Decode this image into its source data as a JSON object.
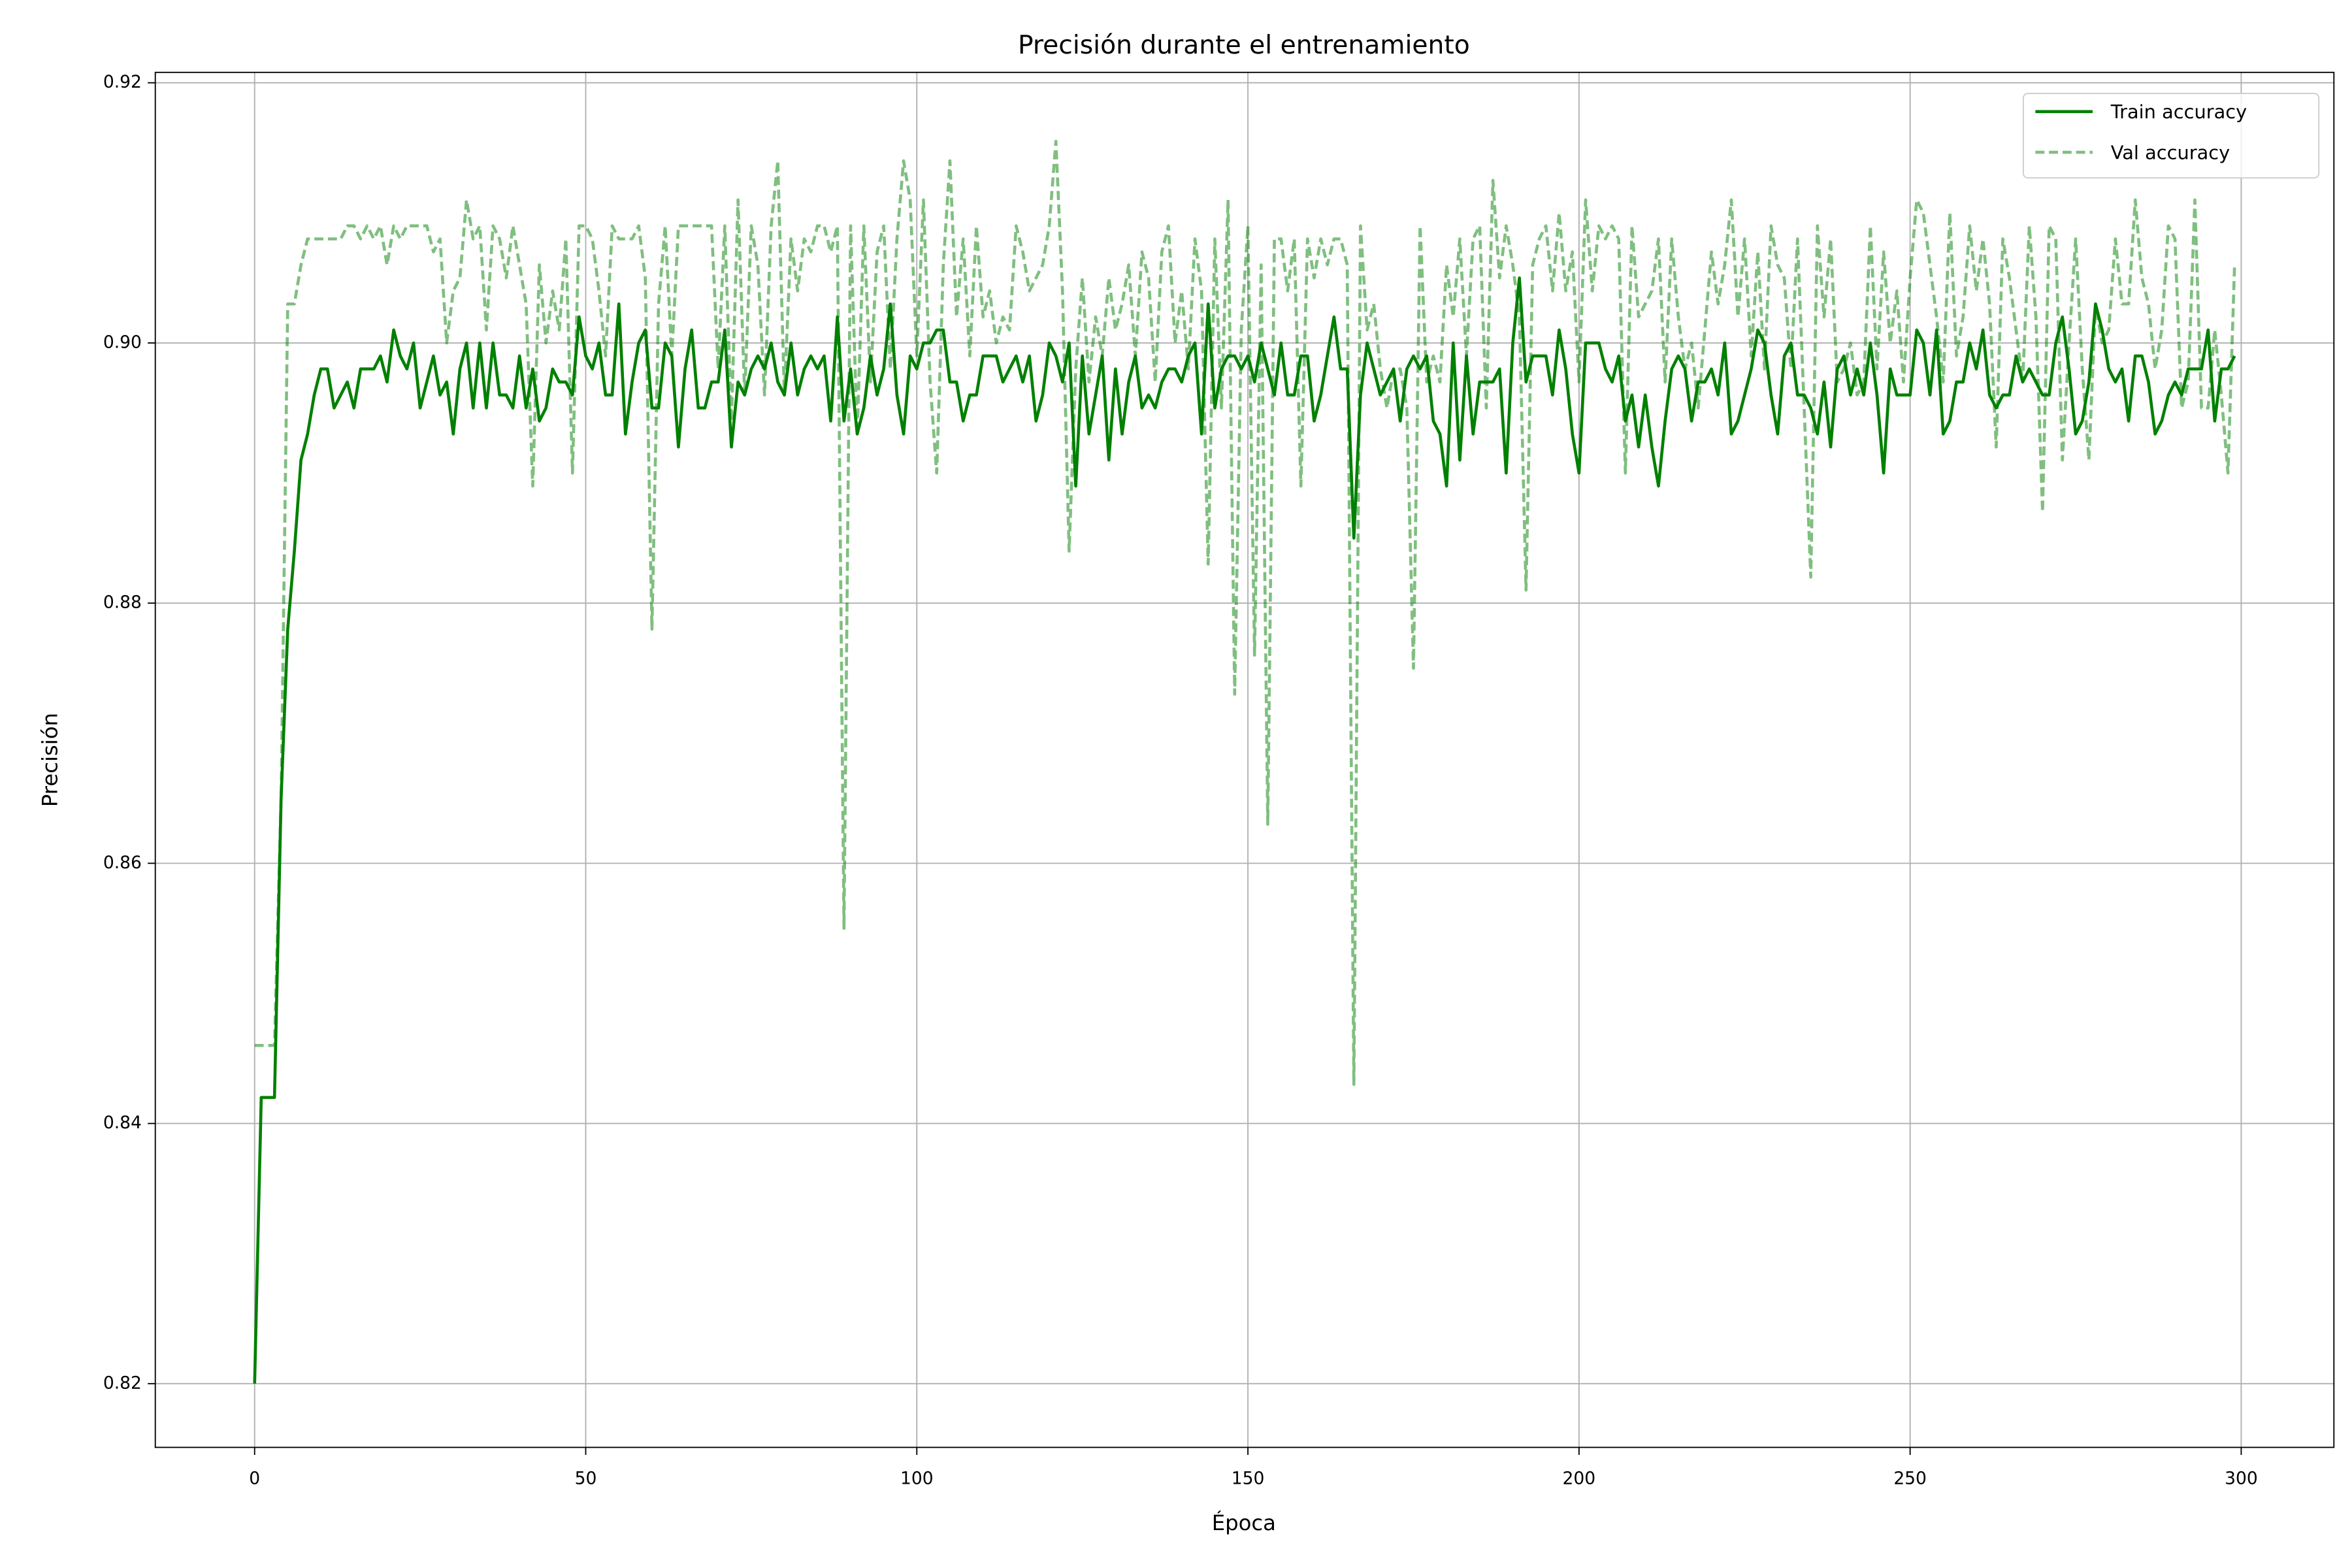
{
  "chart_data": {
    "type": "line",
    "title": "Precisión durante el entrenamiento",
    "x_label": "Época",
    "y_label": "Precisión",
    "xlim": [
      -15,
      314
    ],
    "ylim": [
      0.8151,
      0.9208
    ],
    "xticks": [
      0,
      50,
      100,
      150,
      200,
      250,
      300
    ],
    "yticks": [
      0.82,
      0.84,
      0.86,
      0.88,
      {
        "value": 0.9,
        "label": "0.90"
      },
      0.92
    ],
    "grid": true,
    "legend": "upper right",
    "x": [
      0,
      1,
      2,
      3,
      4,
      5,
      6,
      7,
      8,
      9,
      10,
      11,
      12,
      13,
      14,
      15,
      16,
      17,
      18,
      19,
      20,
      21,
      22,
      23,
      24,
      25,
      26,
      27,
      28,
      29,
      30,
      31,
      32,
      33,
      34,
      35,
      36,
      37,
      38,
      39,
      40,
      41,
      42,
      43,
      44,
      45,
      46,
      47,
      48,
      49,
      50,
      51,
      52,
      53,
      54,
      55,
      56,
      57,
      58,
      59,
      60,
      61,
      62,
      63,
      64,
      65,
      66,
      67,
      68,
      69,
      70,
      71,
      72,
      73,
      74,
      75,
      76,
      77,
      78,
      79,
      80,
      81,
      82,
      83,
      84,
      85,
      86,
      87,
      88,
      89,
      90,
      91,
      92,
      93,
      94,
      95,
      96,
      97,
      98,
      99,
      100,
      101,
      102,
      103,
      104,
      105,
      106,
      107,
      108,
      109,
      110,
      111,
      112,
      113,
      114,
      115,
      116,
      117,
      118,
      119,
      120,
      121,
      122,
      123,
      124,
      125,
      126,
      127,
      128,
      129,
      130,
      131,
      132,
      133,
      134,
      135,
      136,
      137,
      138,
      139,
      140,
      141,
      142,
      143,
      144,
      145,
      146,
      147,
      148,
      149,
      150,
      151,
      152,
      153,
      154,
      155,
      156,
      157,
      158,
      159,
      160,
      161,
      162,
      163,
      164,
      165,
      166,
      167,
      168,
      169,
      170,
      171,
      172,
      173,
      174,
      175,
      176,
      177,
      178,
      179,
      180,
      181,
      182,
      183,
      184,
      185,
      186,
      187,
      188,
      189,
      190,
      191,
      192,
      193,
      194,
      195,
      196,
      197,
      198,
      199,
      200,
      201,
      202,
      203,
      204,
      205,
      206,
      207,
      208,
      209,
      210,
      211,
      212,
      213,
      214,
      215,
      216,
      217,
      218,
      219,
      220,
      221,
      222,
      223,
      224,
      225,
      226,
      227,
      228,
      229,
      230,
      231,
      232,
      233,
      234,
      235,
      236,
      237,
      238,
      239,
      240,
      241,
      242,
      243,
      244,
      245,
      246,
      247,
      248,
      249,
      250,
      251,
      252,
      253,
      254,
      255,
      256,
      257,
      258,
      259,
      260,
      261,
      262,
      263,
      264,
      265,
      266,
      267,
      268,
      269,
      270,
      271,
      272,
      273,
      274,
      275,
      276,
      277,
      278,
      279,
      280,
      281,
      282,
      283,
      284,
      285,
      286,
      287,
      288,
      289,
      290,
      291,
      292,
      293,
      294,
      295,
      296,
      297,
      298,
      299
    ],
    "series": [
      {
        "name": "Train accuracy",
        "color": "#008000",
        "opacity": 1,
        "dashed": false,
        "values": [
          0.82,
          0.842,
          0.842,
          0.842,
          0.865,
          0.878,
          0.884,
          0.891,
          0.893,
          0.896,
          0.898,
          0.898,
          0.895,
          0.896,
          0.897,
          0.895,
          0.898,
          0.898,
          0.898,
          0.899,
          0.897,
          0.901,
          0.899,
          0.898,
          0.9,
          0.895,
          0.897,
          0.899,
          0.896,
          0.897,
          0.893,
          0.898,
          0.9,
          0.895,
          0.9,
          0.895,
          0.9,
          0.896,
          0.896,
          0.895,
          0.899,
          0.895,
          0.898,
          0.894,
          0.895,
          0.898,
          0.897,
          0.897,
          0.896,
          0.902,
          0.899,
          0.898,
          0.9,
          0.896,
          0.896,
          0.903,
          0.893,
          0.897,
          0.9,
          0.901,
          0.895,
          0.895,
          0.9,
          0.899,
          0.892,
          0.898,
          0.901,
          0.895,
          0.895,
          0.897,
          0.897,
          0.901,
          0.892,
          0.897,
          0.896,
          0.898,
          0.899,
          0.898,
          0.9,
          0.897,
          0.896,
          0.9,
          0.896,
          0.898,
          0.899,
          0.898,
          0.899,
          0.894,
          0.902,
          0.894,
          0.898,
          0.893,
          0.895,
          0.899,
          0.896,
          0.898,
          0.903,
          0.896,
          0.893,
          0.899,
          0.898,
          0.9,
          0.9,
          0.901,
          0.901,
          0.897,
          0.897,
          0.894,
          0.896,
          0.896,
          0.899,
          0.899,
          0.899,
          0.897,
          0.898,
          0.899,
          0.897,
          0.899,
          0.894,
          0.896,
          0.9,
          0.899,
          0.897,
          0.9,
          0.889,
          0.899,
          0.893,
          0.896,
          0.899,
          0.891,
          0.898,
          0.893,
          0.897,
          0.899,
          0.895,
          0.896,
          0.895,
          0.897,
          0.898,
          0.898,
          0.897,
          0.899,
          0.9,
          0.893,
          0.903,
          0.895,
          0.898,
          0.899,
          0.899,
          0.898,
          0.899,
          0.897,
          0.9,
          0.898,
          0.896,
          0.9,
          0.896,
          0.896,
          0.899,
          0.899,
          0.894,
          0.896,
          0.899,
          0.902,
          0.898,
          0.898,
          0.885,
          0.896,
          0.9,
          0.898,
          0.896,
          0.897,
          0.898,
          0.894,
          0.898,
          0.899,
          0.898,
          0.899,
          0.894,
          0.893,
          0.889,
          0.9,
          0.891,
          0.899,
          0.893,
          0.897,
          0.897,
          0.897,
          0.898,
          0.89,
          0.9,
          0.905,
          0.897,
          0.899,
          0.899,
          0.899,
          0.896,
          0.901,
          0.898,
          0.893,
          0.89,
          0.9,
          0.9,
          0.9,
          0.898,
          0.897,
          0.899,
          0.894,
          0.896,
          0.892,
          0.896,
          0.892,
          0.889,
          0.894,
          0.898,
          0.899,
          0.898,
          0.894,
          0.897,
          0.897,
          0.898,
          0.896,
          0.9,
          0.893,
          0.894,
          0.896,
          0.898,
          0.901,
          0.9,
          0.896,
          0.893,
          0.899,
          0.9,
          0.896,
          0.896,
          0.895,
          0.893,
          0.897,
          0.892,
          0.898,
          0.899,
          0.896,
          0.898,
          0.896,
          0.9,
          0.896,
          0.89,
          0.898,
          0.896,
          0.896,
          0.896,
          0.901,
          0.9,
          0.896,
          0.901,
          0.893,
          0.894,
          0.897,
          0.897,
          0.9,
          0.898,
          0.901,
          0.896,
          0.895,
          0.896,
          0.896,
          0.899,
          0.897,
          0.898,
          0.897,
          0.896,
          0.896,
          0.9,
          0.902,
          0.898,
          0.893,
          0.894,
          0.897,
          0.903,
          0.901,
          0.898,
          0.897,
          0.898,
          0.894,
          0.899,
          0.899,
          0.897,
          0.893,
          0.894,
          0.896,
          0.897,
          0.896,
          0.898,
          0.898,
          0.898,
          0.901,
          0.894,
          0.898,
          0.898,
          0.899
        ]
      },
      {
        "name": "Val accuracy",
        "color": "#008000",
        "opacity": 0.5,
        "dashed": true,
        "values": [
          0.846,
          0.846,
          0.846,
          0.846,
          0.865,
          0.903,
          0.903,
          0.906,
          0.908,
          0.908,
          0.908,
          0.908,
          0.908,
          0.908,
          0.909,
          0.909,
          0.908,
          0.909,
          0.908,
          0.909,
          0.906,
          0.909,
          0.908,
          0.909,
          0.909,
          0.909,
          0.909,
          0.907,
          0.908,
          0.9,
          0.904,
          0.905,
          0.911,
          0.908,
          0.909,
          0.901,
          0.909,
          0.908,
          0.905,
          0.909,
          0.906,
          0.903,
          0.889,
          0.906,
          0.9,
          0.904,
          0.901,
          0.908,
          0.89,
          0.909,
          0.909,
          0.908,
          0.904,
          0.899,
          0.909,
          0.908,
          0.908,
          0.908,
          0.909,
          0.905,
          0.878,
          0.903,
          0.909,
          0.899,
          0.909,
          0.909,
          0.909,
          0.909,
          0.909,
          0.909,
          0.898,
          0.909,
          0.894,
          0.911,
          0.896,
          0.909,
          0.906,
          0.896,
          0.909,
          0.914,
          0.896,
          0.908,
          0.904,
          0.908,
          0.907,
          0.909,
          0.909,
          0.907,
          0.909,
          0.855,
          0.909,
          0.893,
          0.909,
          0.897,
          0.907,
          0.909,
          0.898,
          0.908,
          0.914,
          0.911,
          0.899,
          0.911,
          0.897,
          0.89,
          0.906,
          0.914,
          0.902,
          0.908,
          0.899,
          0.909,
          0.902,
          0.904,
          0.9,
          0.902,
          0.901,
          0.909,
          0.907,
          0.904,
          0.905,
          0.906,
          0.909,
          0.9155,
          0.904,
          0.884,
          0.898,
          0.905,
          0.897,
          0.902,
          0.899,
          0.905,
          0.901,
          0.903,
          0.906,
          0.899,
          0.907,
          0.905,
          0.897,
          0.907,
          0.909,
          0.9,
          0.904,
          0.898,
          0.908,
          0.904,
          0.883,
          0.908,
          0.895,
          0.911,
          0.873,
          0.901,
          0.909,
          0.876,
          0.906,
          0.863,
          0.908,
          0.908,
          0.904,
          0.908,
          0.889,
          0.908,
          0.905,
          0.908,
          0.906,
          0.908,
          0.908,
          0.906,
          0.843,
          0.909,
          0.901,
          0.903,
          0.898,
          0.895,
          0.898,
          0.898,
          0.895,
          0.875,
          0.909,
          0.897,
          0.899,
          0.897,
          0.906,
          0.902,
          0.908,
          0.899,
          0.908,
          0.909,
          0.895,
          0.9125,
          0.905,
          0.909,
          0.906,
          0.902,
          0.881,
          0.906,
          0.908,
          0.909,
          0.904,
          0.91,
          0.904,
          0.907,
          0.897,
          0.911,
          0.904,
          0.909,
          0.908,
          0.909,
          0.908,
          0.89,
          0.909,
          0.902,
          0.903,
          0.904,
          0.908,
          0.897,
          0.908,
          0.902,
          0.898,
          0.9,
          0.895,
          0.901,
          0.907,
          0.903,
          0.906,
          0.911,
          0.902,
          0.908,
          0.899,
          0.907,
          0.898,
          0.909,
          0.906,
          0.905,
          0.898,
          0.908,
          0.895,
          0.882,
          0.909,
          0.902,
          0.908,
          0.897,
          0.898,
          0.9,
          0.896,
          0.897,
          0.909,
          0.898,
          0.907,
          0.9,
          0.904,
          0.897,
          0.905,
          0.911,
          0.91,
          0.906,
          0.902,
          0.897,
          0.91,
          0.899,
          0.902,
          0.909,
          0.904,
          0.908,
          0.903,
          0.892,
          0.908,
          0.905,
          0.901,
          0.897,
          0.909,
          0.902,
          0.887,
          0.909,
          0.908,
          0.891,
          0.9,
          0.908,
          0.898,
          0.891,
          0.903,
          0.9,
          0.901,
          0.908,
          0.903,
          0.903,
          0.911,
          0.905,
          0.903,
          0.898,
          0.901,
          0.909,
          0.908,
          0.895,
          0.897,
          0.911,
          0.895,
          0.895,
          0.901,
          0.896,
          0.89,
          0.906
        ]
      }
    ]
  }
}
